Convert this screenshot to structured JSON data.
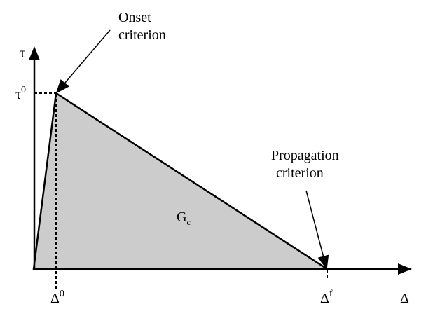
{
  "axes": {
    "y_label": "τ",
    "x_label": "Δ"
  },
  "ticks": {
    "tau0": {
      "base": "τ",
      "sup": "0"
    },
    "delta0": {
      "base": "Δ",
      "sup": "0"
    },
    "deltaf": {
      "base": "Δ",
      "sup": "f"
    }
  },
  "annotations": {
    "onset": [
      "Onset",
      "criterion"
    ],
    "propagation": [
      "Propagation",
      "criterion"
    ]
  },
  "area_label": {
    "base": "G",
    "sub": "c"
  },
  "colors": {
    "fill": "#cccccc",
    "line": "#000000"
  }
}
